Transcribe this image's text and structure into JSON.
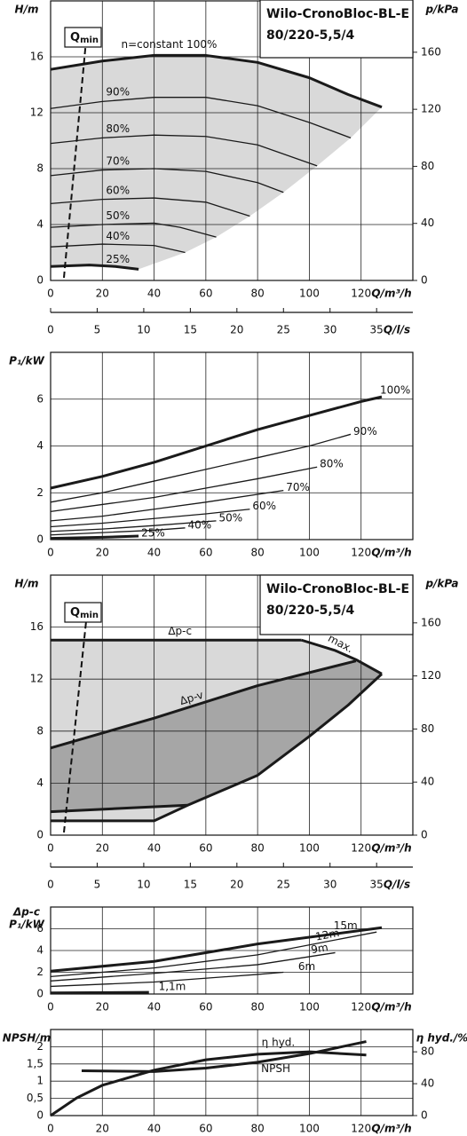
{
  "chart_data": [
    {
      "type": "line",
      "title": "Wilo-CronoBloc-BL-E",
      "subtitle": "80/220-5,5/4",
      "ylabel": "H/m",
      "y2label": "p/kPa",
      "xlabel": "Q/m³/h",
      "x2label": "Q/l/s",
      "annotation": {
        "text": "Q",
        "subscript": "min"
      },
      "xlim": [
        0,
        140
      ],
      "xticks": [
        0,
        20,
        40,
        60,
        80,
        100,
        120
      ],
      "ylim": [
        0,
        20
      ],
      "yticks": [
        0,
        4,
        8,
        12,
        16
      ],
      "y2lim": [
        0,
        196
      ],
      "y2ticks": [
        0,
        40,
        80,
        120,
        160
      ],
      "x2lim": [
        0,
        38.89
      ],
      "x2ticks": [
        0,
        5,
        10,
        15,
        20,
        25,
        30,
        35
      ],
      "grid": true,
      "color": "#1a1a1a",
      "area_colors": [
        "#d9d9d9"
      ],
      "series": [
        {
          "name": "n=constant 100%",
          "x": [
            0,
            20,
            40,
            60,
            80,
            100,
            115,
            128
          ],
          "values": [
            15.1,
            15.7,
            16.1,
            16.1,
            15.6,
            14.5,
            13.3,
            12.4
          ]
        },
        {
          "name": "90%",
          "x": [
            0,
            20,
            40,
            60,
            80,
            100,
            116
          ],
          "values": [
            12.3,
            12.8,
            13.1,
            13.1,
            12.5,
            11.3,
            10.2
          ]
        },
        {
          "name": "80%",
          "x": [
            0,
            20,
            40,
            60,
            80,
            103
          ],
          "values": [
            9.8,
            10.2,
            10.4,
            10.3,
            9.7,
            8.2
          ]
        },
        {
          "name": "70%",
          "x": [
            0,
            20,
            40,
            60,
            80,
            90
          ],
          "values": [
            7.5,
            7.9,
            8.0,
            7.8,
            7.0,
            6.3
          ]
        },
        {
          "name": "60%",
          "x": [
            0,
            20,
            40,
            60,
            77
          ],
          "values": [
            5.5,
            5.8,
            5.9,
            5.6,
            4.6
          ]
        },
        {
          "name": "50%",
          "x": [
            0,
            20,
            40,
            50,
            64
          ],
          "values": [
            3.8,
            4.0,
            4.1,
            3.8,
            3.1
          ]
        },
        {
          "name": "40%",
          "x": [
            0,
            20,
            40,
            52
          ],
          "values": [
            2.4,
            2.6,
            2.5,
            2.0
          ]
        },
        {
          "name": "25%",
          "x": [
            0,
            15,
            25,
            34
          ],
          "values": [
            1.0,
            1.1,
            1.0,
            0.8
          ]
        }
      ]
    },
    {
      "type": "line",
      "ylabel": "P₁/kW",
      "xlabel": "Q/m³/h",
      "xlim": [
        0,
        140
      ],
      "xticks": [
        0,
        20,
        40,
        60,
        80,
        100,
        120
      ],
      "ylim": [
        0,
        8
      ],
      "yticks": [
        0,
        2,
        4,
        6
      ],
      "grid": true,
      "color": "#1a1a1a",
      "series": [
        {
          "name": "100%",
          "x": [
            0,
            20,
            40,
            60,
            80,
            100,
            120,
            128
          ],
          "values": [
            2.2,
            2.7,
            3.3,
            4.0,
            4.7,
            5.3,
            5.9,
            6.1
          ]
        },
        {
          "name": "90%",
          "x": [
            0,
            20,
            40,
            60,
            80,
            100,
            116
          ],
          "values": [
            1.6,
            2.0,
            2.5,
            3.0,
            3.5,
            4.0,
            4.5
          ]
        },
        {
          "name": "80%",
          "x": [
            0,
            20,
            40,
            60,
            80,
            103
          ],
          "values": [
            1.2,
            1.5,
            1.8,
            2.2,
            2.6,
            3.1
          ]
        },
        {
          "name": "70%",
          "x": [
            0,
            20,
            40,
            60,
            90
          ],
          "values": [
            0.8,
            1.0,
            1.3,
            1.6,
            2.1
          ]
        },
        {
          "name": "60%",
          "x": [
            0,
            20,
            40,
            60,
            77
          ],
          "values": [
            0.55,
            0.7,
            0.9,
            1.1,
            1.3
          ]
        },
        {
          "name": "50%",
          "x": [
            0,
            20,
            40,
            64
          ],
          "values": [
            0.35,
            0.45,
            0.6,
            0.8
          ]
        },
        {
          "name": "40%",
          "x": [
            0,
            20,
            40,
            52
          ],
          "values": [
            0.2,
            0.3,
            0.4,
            0.5
          ]
        },
        {
          "name": "25%",
          "x": [
            0,
            20,
            34
          ],
          "values": [
            0.05,
            0.1,
            0.15
          ]
        }
      ]
    },
    {
      "type": "line",
      "title": "Wilo-CronoBloc-BL-E",
      "subtitle": "80/220-5,5/4",
      "ylabel": "H/m",
      "y2label": "p/kPa",
      "xlabel": "Q/m³/h",
      "x2label": "Q/l/s",
      "annotation": {
        "text": "Q",
        "subscript": "min"
      },
      "xlim": [
        0,
        140
      ],
      "xticks": [
        0,
        20,
        40,
        60,
        80,
        100,
        120
      ],
      "ylim": [
        0,
        20
      ],
      "yticks": [
        0,
        4,
        8,
        12,
        16
      ],
      "y2lim": [
        0,
        196
      ],
      "y2ticks": [
        0,
        40,
        80,
        120,
        160
      ],
      "x2lim": [
        0,
        38.89
      ],
      "x2ticks": [
        0,
        5,
        10,
        15,
        20,
        25,
        30,
        35
      ],
      "grid": true,
      "color": "#1a1a1a",
      "area_colors": [
        "#d9d9d9",
        "#a6a6a6"
      ],
      "series": [
        {
          "name": "Δp-c",
          "x": [
            0,
            97
          ],
          "values": [
            15,
            15
          ]
        },
        {
          "name": "max.",
          "x": [
            97,
            110,
            118,
            128
          ],
          "values": [
            15,
            14.2,
            13.5,
            12.4
          ]
        },
        {
          "name": "Δp-v",
          "x": [
            0,
            40,
            80,
            118
          ],
          "values": [
            6.7,
            9,
            11.5,
            13.4
          ]
        },
        {
          "x": [
            0,
            53
          ],
          "values": [
            1.8,
            2.3
          ]
        },
        {
          "x": [
            0,
            40
          ],
          "values": [
            1.1,
            1.1
          ]
        },
        {
          "x": [
            40,
            53,
            80,
            100,
            115,
            128
          ],
          "values": [
            1.1,
            2.3,
            4.6,
            7.6,
            10,
            12.4
          ]
        }
      ]
    },
    {
      "type": "line",
      "ylabel": [
        "Δp-c",
        "P₁/kW"
      ],
      "xlabel": "Q/m³/h",
      "xlim": [
        0,
        140
      ],
      "xticks": [
        0,
        20,
        40,
        60,
        80,
        100,
        120
      ],
      "ylim": [
        0,
        8
      ],
      "yticks": [
        0,
        2,
        4,
        6
      ],
      "grid": true,
      "color": "#1a1a1a",
      "series": [
        {
          "name": "15m",
          "x": [
            0,
            40,
            80,
            128
          ],
          "values": [
            2.1,
            3.0,
            4.6,
            6.1
          ]
        },
        {
          "name": "12m",
          "x": [
            0,
            40,
            80,
            126
          ],
          "values": [
            1.6,
            2.4,
            3.6,
            5.7
          ]
        },
        {
          "name": "9m",
          "x": [
            0,
            40,
            80,
            110
          ],
          "values": [
            1.2,
            1.9,
            2.7,
            3.8
          ]
        },
        {
          "name": "6m",
          "x": [
            0,
            40,
            80,
            90
          ],
          "values": [
            0.7,
            1.1,
            1.8,
            2.0
          ]
        },
        {
          "name": "1,1m",
          "x": [
            0,
            38
          ],
          "values": [
            0.1,
            0.15
          ]
        }
      ]
    },
    {
      "type": "line",
      "ylabel": "NPSH/m",
      "y2label": "η hyd./%",
      "xlabel": "Q/m³/h",
      "xlim": [
        0,
        140
      ],
      "xticks": [
        0,
        20,
        40,
        60,
        80,
        100,
        120
      ],
      "ylim": [
        0,
        2.5
      ],
      "yticks": [
        0,
        {
          "value": 0.5,
          "label": "0,5"
        },
        1,
        {
          "value": 1.5,
          "label": "1,5"
        },
        2
      ],
      "y2lim": [
        0,
        108
      ],
      "y2ticks": [
        0,
        40,
        80
      ],
      "grid": true,
      "color": "#1a1a1a",
      "series": [
        {
          "name": "η hyd.",
          "axis": "y2",
          "x": [
            0,
            10,
            20,
            40,
            60,
            80,
            100,
            122
          ],
          "values": [
            0,
            22,
            38,
            57,
            70,
            77,
            80,
            76
          ]
        },
        {
          "name": "NPSH",
          "x": [
            12,
            40,
            60,
            80,
            100,
            122
          ],
          "values": [
            1.3,
            1.28,
            1.38,
            1.55,
            1.8,
            2.15
          ]
        }
      ]
    }
  ]
}
